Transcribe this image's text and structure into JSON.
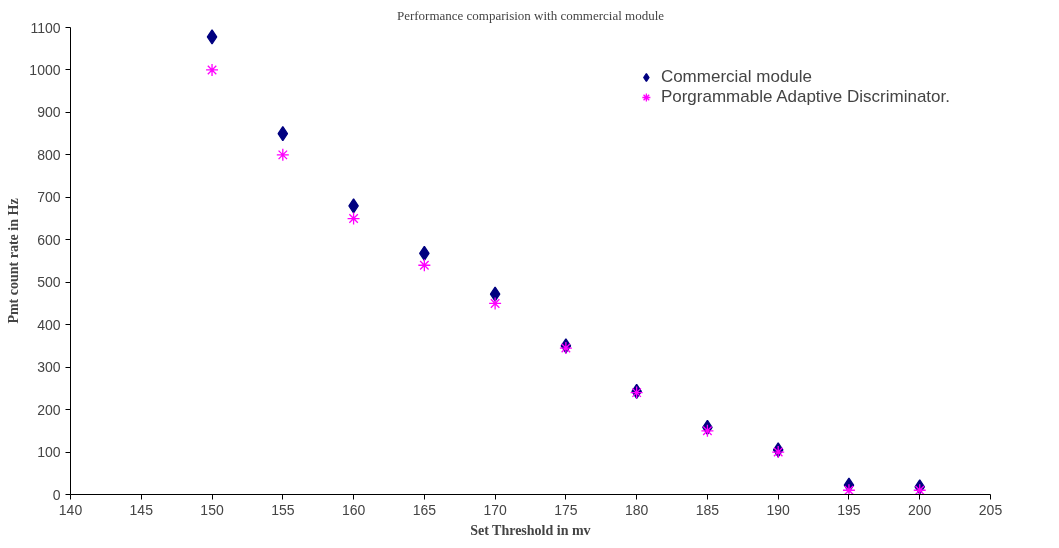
{
  "chart_data": {
    "type": "scatter",
    "title": "Performance comparision with commercial module",
    "xlabel": "Set Threshold in mv",
    "ylabel": "Pmt count rate in Hz",
    "x": [
      150,
      155,
      160,
      165,
      170,
      175,
      180,
      185,
      190,
      195,
      200
    ],
    "series": [
      {
        "name": "Commercial module",
        "color": "#000080",
        "marker": "diamond",
        "values": [
          1078,
          850,
          680,
          568,
          472,
          350,
          243,
          158,
          105,
          22,
          18
        ]
      },
      {
        "name": "Porgrammable Adaptive Discriminator.",
        "color": "#ff00ff",
        "marker": "cross",
        "values": [
          1000,
          800,
          650,
          540,
          450,
          345,
          240,
          150,
          100,
          10,
          10
        ]
      }
    ],
    "xlim": [
      140,
      205
    ],
    "xticks": [
      140,
      145,
      150,
      155,
      160,
      165,
      170,
      175,
      180,
      185,
      190,
      195,
      200,
      205
    ],
    "ylim": [
      0,
      1100
    ],
    "yticks": [
      0,
      100,
      200,
      300,
      400,
      500,
      600,
      700,
      800,
      900,
      1000,
      1100
    ],
    "grid": false,
    "legend": "top right"
  }
}
